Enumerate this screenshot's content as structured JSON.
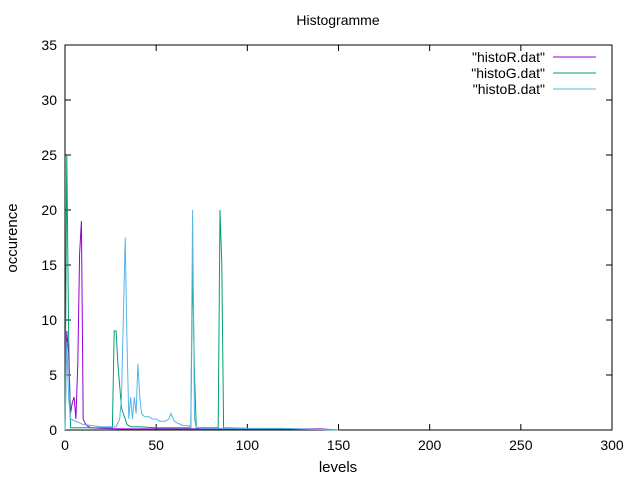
{
  "chart_data": {
    "type": "line",
    "title": "Histogramme",
    "xlabel": "levels",
    "ylabel": "occurence",
    "xlim": [
      0,
      300
    ],
    "ylim": [
      0,
      35
    ],
    "xticks": [
      0,
      50,
      100,
      150,
      200,
      250,
      300
    ],
    "yticks": [
      0,
      5,
      10,
      15,
      20,
      25,
      30,
      35
    ],
    "grid": false,
    "legend_position": "top-right",
    "series": [
      {
        "name": "\"histoR.dat\"",
        "color": "#9400d3",
        "x": [
          0,
          1,
          2,
          3,
          4,
          5,
          6,
          7,
          8,
          9,
          10,
          11,
          12,
          14,
          20,
          30,
          40,
          50,
          60,
          70,
          80,
          90,
          100,
          110,
          120,
          130,
          140,
          150
        ],
        "y": [
          0,
          9,
          7,
          1.5,
          2.5,
          3,
          1,
          6,
          16,
          19,
          1,
          0.6,
          0.4,
          0.2,
          0.15,
          0.1,
          0.1,
          0.1,
          0.1,
          0.1,
          0.1,
          0.1,
          0.1,
          0.1,
          0.1,
          0.1,
          0.1,
          0
        ]
      },
      {
        "name": "\"histoG.dat\"",
        "color": "#009e73",
        "x": [
          0,
          1,
          2,
          3,
          20,
          26,
          27,
          28,
          29,
          30,
          31,
          32,
          33,
          34,
          36,
          40,
          50,
          60,
          69,
          70,
          71,
          72,
          80,
          84,
          85,
          86,
          87,
          100,
          120,
          150
        ],
        "y": [
          0,
          25,
          9,
          0.2,
          0.2,
          0.2,
          9,
          9,
          6,
          4,
          2,
          1.5,
          1,
          0.5,
          0.3,
          0.3,
          0.2,
          0.2,
          0.2,
          15,
          5,
          0.2,
          0.2,
          0.2,
          20,
          15,
          0.2,
          0.15,
          0.1,
          0
        ]
      },
      {
        "name": "\"histoB.dat\"",
        "color": "#56b4e9",
        "x": [
          0,
          1,
          2,
          3,
          10,
          20,
          28,
          30,
          31,
          32,
          33,
          34,
          35,
          36,
          37,
          38,
          39,
          40,
          41,
          42,
          43,
          44,
          46,
          48,
          50,
          52,
          55,
          57,
          58,
          60,
          62,
          65,
          68,
          69,
          70,
          71,
          72,
          75,
          80,
          100,
          120,
          150
        ],
        "y": [
          0,
          8,
          3,
          1,
          0.5,
          0.3,
          0.3,
          1,
          3,
          10,
          17.5,
          8,
          1,
          3,
          1,
          3,
          1.5,
          6,
          3,
          1.5,
          1.3,
          1.2,
          1.2,
          1,
          1,
          0.8,
          0.8,
          1,
          1.5,
          0.8,
          0.6,
          0.4,
          0.4,
          0.2,
          20,
          1,
          0.2,
          0.15,
          0.15,
          0.15,
          0.15,
          0
        ]
      }
    ]
  }
}
